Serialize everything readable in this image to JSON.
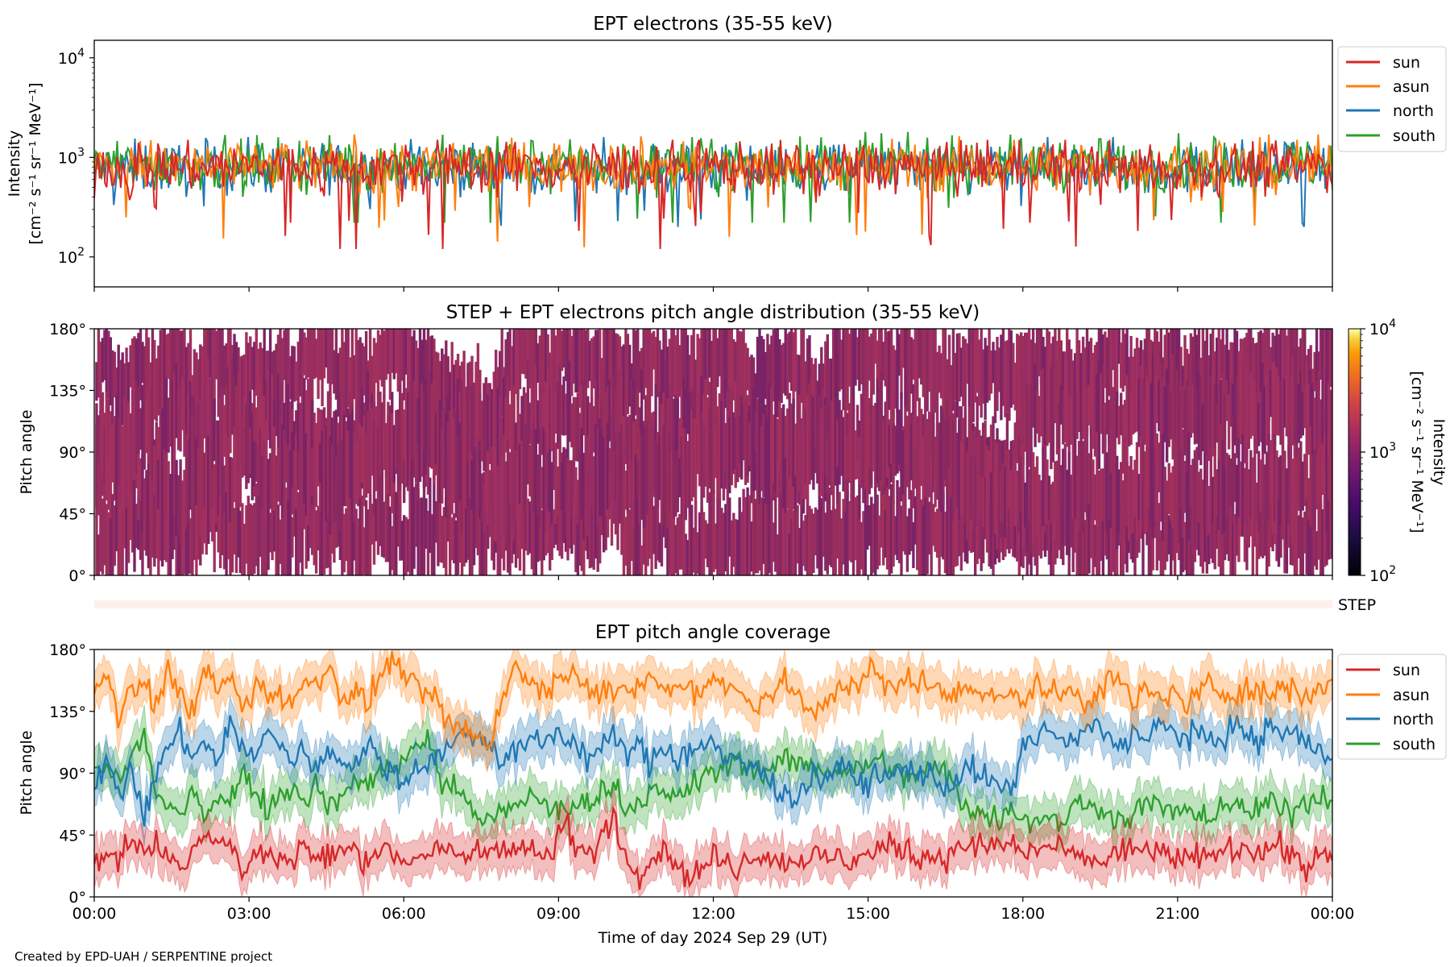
{
  "credit": "Created by EPD-UAH / SERPENTINE project",
  "xlabel": "Time of day 2024 Sep 29 (UT)",
  "x_ticks": [
    "00:00",
    "03:00",
    "06:00",
    "09:00",
    "12:00",
    "15:00",
    "18:00",
    "21:00",
    "00:00"
  ],
  "colors": {
    "sun": "#d62728",
    "asun": "#ff7f0e",
    "north": "#1f77b4",
    "south": "#2ca02c",
    "pad": "#962d63",
    "step_band": "#fdf0ea"
  },
  "chart_data": [
    {
      "id": "intensity",
      "type": "line",
      "title": "EPT electrons (35-55 keV)",
      "ylabel_line1": "Intensity",
      "ylabel_line2": "[cm⁻² s⁻¹ sr⁻¹ MeV⁻¹]",
      "yscale": "log",
      "ylim": [
        50,
        15000
      ],
      "xlim_hours": [
        0,
        24
      ],
      "y_ticks": [
        {
          "base": "10",
          "exp": "2"
        },
        {
          "base": "10",
          "exp": "3"
        },
        {
          "base": "10",
          "exp": "4"
        }
      ],
      "legend": [
        "sun",
        "asun",
        "north",
        "south"
      ],
      "legend_position": "upper right, outside plot",
      "series": [
        {
          "name": "sun",
          "typical": 800,
          "range": [
            120,
            1500
          ]
        },
        {
          "name": "asun",
          "typical": 820,
          "range": [
            125,
            1700
          ]
        },
        {
          "name": "north",
          "typical": 780,
          "range": [
            200,
            1600
          ]
        },
        {
          "name": "south",
          "typical": 850,
          "range": [
            220,
            1800
          ]
        }
      ]
    },
    {
      "id": "pad",
      "type": "heatmap",
      "title": "STEP + EPT electrons pitch angle distribution (35-55 keV)",
      "ylabel": "Pitch angle",
      "ylim": [
        0,
        180
      ],
      "y_ticks": [
        "0°",
        "45°",
        "90°",
        "135°",
        "180°"
      ],
      "colorbar": {
        "label_line1": "Intensity",
        "label_line2": "[cm⁻² s⁻¹ sr⁻¹ MeV⁻¹]",
        "scale": "log",
        "range": [
          100,
          10000
        ],
        "colormap": "inferno",
        "ticks": [
          {
            "base": "10",
            "exp": "2"
          },
          {
            "base": "10",
            "exp": "3"
          },
          {
            "base": "10",
            "exp": "4"
          }
        ]
      },
      "typical_intensity": 800
    },
    {
      "id": "step",
      "type": "area",
      "label": "STEP"
    },
    {
      "id": "coverage",
      "type": "line",
      "title": "EPT pitch angle coverage",
      "ylabel": "Pitch angle",
      "ylim": [
        0,
        180
      ],
      "y_ticks": [
        "0°",
        "45°",
        "90°",
        "135°",
        "180°"
      ],
      "legend": [
        "sun",
        "asun",
        "north",
        "south"
      ],
      "legend_position": "upper right, outside plot",
      "series": [
        {
          "name": "sun",
          "values_deg": [
            20,
            35,
            25,
            45,
            30,
            40,
            28,
            22,
            35,
            48,
            40,
            38,
            15,
            32,
            30,
            28,
            26,
            40,
            25,
            30,
            35,
            30,
            28,
            38,
            30,
            25,
            30,
            32,
            35,
            28,
            30,
            32,
            35,
            38,
            40,
            35,
            30,
            32,
            55,
            35,
            30,
            45,
            60,
            25,
            20,
            28,
            35,
            25,
            15,
            20,
            28,
            25,
            22,
            30,
            32,
            28,
            25,
            25,
            30,
            28,
            30,
            25,
            30,
            32,
            35,
            38,
            30,
            30,
            32,
            28,
            40,
            35,
            38,
            35,
            40,
            30,
            35,
            38,
            35,
            28,
            30,
            25,
            28,
            35,
            32,
            38,
            30,
            28,
            25,
            30,
            28,
            35,
            32,
            40,
            30,
            38,
            35,
            28,
            22,
            30,
            28
          ]
        },
        {
          "name": "asun",
          "values_deg": [
            145,
            160,
            130,
            150,
            155,
            140,
            165,
            150,
            130,
            170,
            150,
            160,
            135,
            155,
            145,
            150,
            140,
            155,
            160,
            165,
            145,
            150,
            140,
            160,
            170,
            165,
            150,
            145,
            135,
            120,
            125,
            115,
            110,
            150,
            165,
            160,
            150,
            155,
            165,
            160,
            155,
            150,
            150,
            145,
            155,
            160,
            150,
            148,
            155,
            150,
            160,
            155,
            150,
            140,
            145,
            150,
            155,
            145,
            130,
            140,
            150,
            155,
            160,
            165,
            150,
            155,
            160,
            158,
            150,
            145,
            150,
            155,
            150,
            145,
            150,
            140,
            155,
            150,
            145,
            150,
            140,
            150,
            160,
            155,
            140,
            150,
            145,
            150,
            140,
            145,
            155,
            150,
            148,
            152,
            150,
            145,
            155,
            150,
            145,
            155,
            158
          ]
        },
        {
          "name": "north",
          "values_deg": [
            85,
            100,
            70,
            95,
            55,
            90,
            110,
            120,
            100,
            115,
            95,
            130,
            110,
            100,
            120,
            115,
            95,
            110,
            90,
            105,
            100,
            95,
            110,
            100,
            90,
            85,
            95,
            100,
            105,
            110,
            120,
            115,
            110,
            100,
            105,
            115,
            110,
            120,
            115,
            110,
            100,
            110,
            115,
            105,
            110,
            95,
            110,
            100,
            105,
            110,
            115,
            95,
            100,
            95,
            90,
            80,
            70,
            75,
            90,
            85,
            90,
            95,
            80,
            90,
            85,
            90,
            95,
            90,
            85,
            80,
            90,
            95,
            85,
            80,
            75,
            110,
            115,
            120,
            115,
            110,
            120,
            125,
            115,
            110,
            120,
            115,
            125,
            120,
            115,
            120,
            110,
            115,
            125,
            120,
            110,
            125,
            118,
            120,
            110,
            108,
            105
          ]
        },
        {
          "name": "south",
          "values_deg": [
            90,
            95,
            85,
            100,
            120,
            75,
            65,
            55,
            80,
            60,
            75,
            70,
            90,
            80,
            65,
            75,
            80,
            70,
            85,
            65,
            75,
            80,
            85,
            90,
            95,
            100,
            110,
            115,
            85,
            80,
            70,
            60,
            55,
            60,
            65,
            75,
            70,
            65,
            60,
            65,
            70,
            75,
            80,
            65,
            70,
            80,
            70,
            75,
            80,
            85,
            90,
            95,
            100,
            95,
            90,
            95,
            100,
            95,
            100,
            90,
            95,
            90,
            95,
            100,
            95,
            90,
            85,
            90,
            95,
            90,
            70,
            65,
            60,
            55,
            65,
            60,
            55,
            60,
            55,
            65,
            70,
            60,
            65,
            55,
            60,
            70,
            65,
            60,
            65,
            55,
            60,
            65,
            70,
            60,
            65,
            70,
            60,
            65,
            70,
            72,
            70
          ]
        }
      ]
    }
  ]
}
